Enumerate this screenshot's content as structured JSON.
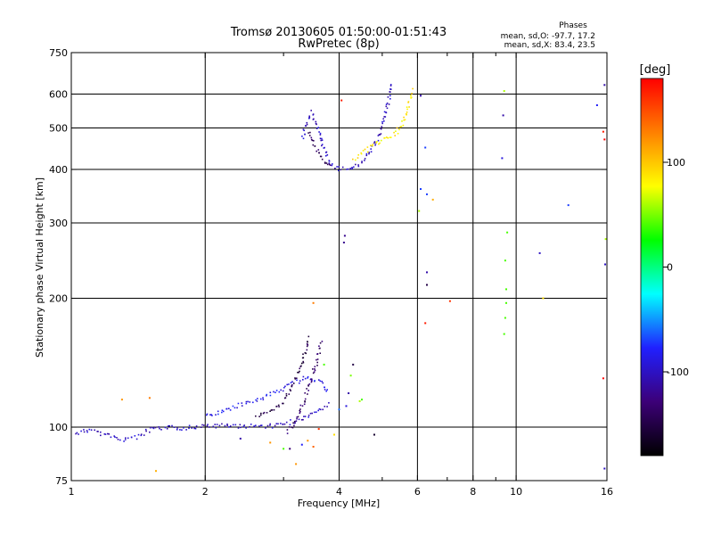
{
  "chart_data": {
    "type": "scatter",
    "title": "Tromsø 20130605 01:50:00-01:51:43",
    "subtitle": "RwPretec (8p)",
    "xlabel": "Frequency [MHz]",
    "ylabel": "Stationary phase Virtual Height [km]",
    "x_scale": "log",
    "y_scale": "log",
    "xlim": [
      1,
      16
    ],
    "ylim": [
      75,
      750
    ],
    "grid": true,
    "x_ticks": [
      1,
      2,
      4,
      6,
      8,
      10,
      16
    ],
    "x_minor_ticks": [
      3,
      5,
      7,
      9
    ],
    "y_ticks": [
      75,
      100,
      200,
      300,
      400,
      500,
      600,
      750
    ],
    "stats": {
      "title": "Phases",
      "line1": "mean, sd,O: -97.7, 17.2",
      "line2": "mean, sd,X:  83.4, 23.5"
    },
    "colorbar": {
      "label": "[deg]",
      "range": [
        -180,
        180
      ],
      "ticks": [
        100,
        0,
        -100
      ],
      "tick_labels": [
        "100",
        "0",
        "-100"
      ],
      "colors": [
        "#000000",
        "#3c0078",
        "#2020ff",
        "#00ffff",
        "#00ff00",
        "#ffff00",
        "#ff8000",
        "#ff0000"
      ]
    },
    "series": [
      {
        "type": "trace",
        "points": [
          [
            1.02,
            97
          ],
          [
            1.06,
            98
          ],
          [
            1.1,
            99
          ],
          [
            1.2,
            96
          ],
          [
            1.3,
            94
          ],
          [
            1.4,
            95
          ],
          [
            1.5,
            99
          ],
          [
            1.65,
            100
          ],
          [
            1.8,
            100
          ],
          [
            2.0,
            101
          ],
          [
            2.2,
            101
          ],
          [
            2.4,
            101
          ],
          [
            2.6,
            101
          ],
          [
            2.8,
            101
          ],
          [
            3.0,
            102
          ],
          [
            3.2,
            104
          ],
          [
            3.4,
            106
          ],
          [
            3.6,
            110
          ],
          [
            3.8,
            114
          ]
        ],
        "phase": -100
      },
      {
        "type": "trace",
        "points": [
          [
            2.0,
            106
          ],
          [
            2.2,
            110
          ],
          [
            2.4,
            113
          ],
          [
            2.6,
            116
          ],
          [
            2.8,
            120
          ],
          [
            3.0,
            124
          ],
          [
            3.2,
            128
          ],
          [
            3.4,
            132
          ],
          [
            3.6,
            128
          ],
          [
            3.8,
            121
          ]
        ],
        "phase": -85
      },
      {
        "type": "trace",
        "points": [
          [
            2.6,
            106
          ],
          [
            2.8,
            109
          ],
          [
            3.0,
            116
          ],
          [
            3.1,
            123
          ],
          [
            3.2,
            132
          ],
          [
            3.3,
            142
          ],
          [
            3.35,
            152
          ],
          [
            3.42,
            164
          ]
        ],
        "phase": -150
      },
      {
        "type": "trace",
        "points": [
          [
            3.05,
            98
          ],
          [
            3.15,
            102
          ],
          [
            3.25,
            109
          ],
          [
            3.35,
            118
          ],
          [
            3.45,
            130
          ],
          [
            3.55,
            143
          ],
          [
            3.6,
            152
          ],
          [
            3.65,
            160
          ]
        ],
        "phase": -135
      },
      {
        "type": "trace",
        "points": [
          [
            3.3,
            475
          ],
          [
            3.35,
            510
          ],
          [
            3.45,
            545
          ],
          [
            3.55,
            515
          ],
          [
            3.65,
            465
          ],
          [
            3.75,
            430
          ],
          [
            3.85,
            410
          ],
          [
            4.0,
            402
          ],
          [
            4.2,
            404
          ],
          [
            4.4,
            412
          ],
          [
            4.6,
            428
          ],
          [
            4.8,
            458
          ],
          [
            5.0,
            515
          ],
          [
            5.15,
            580
          ],
          [
            5.25,
            640
          ]
        ],
        "phase": -100
      },
      {
        "type": "trace",
        "points": [
          [
            3.4,
            490
          ],
          [
            3.5,
            460
          ],
          [
            3.6,
            435
          ],
          [
            3.7,
            418
          ],
          [
            3.85,
            405
          ]
        ],
        "phase": -140
      },
      {
        "type": "trace",
        "points": [
          [
            4.3,
            425
          ],
          [
            4.5,
            438
          ],
          [
            4.8,
            460
          ],
          [
            5.0,
            470
          ],
          [
            5.3,
            480
          ],
          [
            5.5,
            510
          ],
          [
            5.7,
            560
          ],
          [
            5.85,
            620
          ]
        ],
        "phase": 85
      }
    ],
    "scatter": [
      [
        4.0,
        110,
        -60
      ],
      [
        4.15,
        112,
        -90
      ],
      [
        4.2,
        120,
        -110
      ],
      [
        4.3,
        140,
        -150
      ],
      [
        4.45,
        115,
        60
      ],
      [
        4.5,
        116,
        40
      ],
      [
        4.8,
        96,
        -160
      ],
      [
        3.9,
        96,
        90
      ],
      [
        4.05,
        580,
        170
      ],
      [
        4.1,
        270,
        -120
      ],
      [
        4.12,
        280,
        -120
      ],
      [
        6.1,
        595,
        -110
      ],
      [
        6.25,
        450,
        -70
      ],
      [
        6.1,
        360,
        -70
      ],
      [
        6.3,
        350,
        -70
      ],
      [
        6.05,
        320,
        60
      ],
      [
        6.5,
        340,
        110
      ],
      [
        6.3,
        230,
        -110
      ],
      [
        6.3,
        215,
        -150
      ],
      [
        6.25,
        175,
        170
      ],
      [
        7.1,
        197,
        160
      ],
      [
        9.4,
        610,
        60
      ],
      [
        9.35,
        535,
        -110
      ],
      [
        9.3,
        425,
        -90
      ],
      [
        9.55,
        285,
        40
      ],
      [
        9.45,
        245,
        40
      ],
      [
        9.5,
        210,
        40
      ],
      [
        9.5,
        195,
        40
      ],
      [
        9.45,
        180,
        40
      ],
      [
        9.4,
        165,
        40
      ],
      [
        11.3,
        255,
        -100
      ],
      [
        11.5,
        200,
        90
      ],
      [
        13.1,
        330,
        -70
      ],
      [
        15.2,
        565,
        -80
      ],
      [
        15.8,
        630,
        -110
      ],
      [
        15.7,
        490,
        170
      ],
      [
        15.8,
        470,
        180
      ],
      [
        15.9,
        275,
        60
      ],
      [
        15.85,
        240,
        -100
      ],
      [
        15.7,
        130,
        180
      ],
      [
        15.8,
        80,
        -100
      ],
      [
        1.3,
        116,
        120
      ],
      [
        1.5,
        117,
        130
      ],
      [
        1.55,
        79,
        110
      ],
      [
        2.4,
        94,
        -110
      ],
      [
        2.8,
        92,
        120
      ],
      [
        3.0,
        89,
        40
      ],
      [
        3.1,
        89,
        -130
      ],
      [
        3.3,
        91,
        -80
      ],
      [
        3.4,
        93,
        120
      ],
      [
        3.5,
        90,
        140
      ],
      [
        3.2,
        82,
        120
      ],
      [
        3.6,
        99,
        160
      ],
      [
        3.5,
        195,
        130
      ],
      [
        3.7,
        140,
        40
      ],
      [
        4.25,
        132,
        50
      ]
    ]
  }
}
